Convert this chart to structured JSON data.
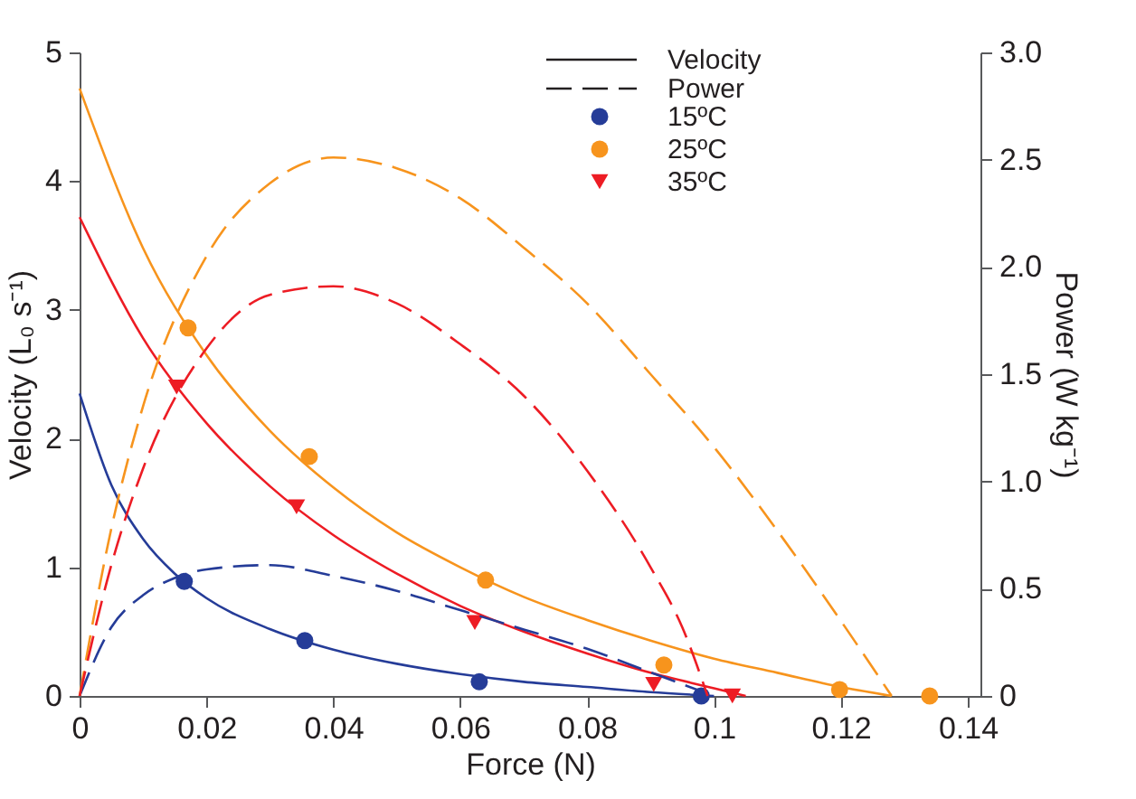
{
  "chart_data": {
    "type": "line",
    "xlabel": "Force (N)",
    "ylabel": "Velocity (L₀ s⁻¹)",
    "y2label": "Power (W kg⁻¹)",
    "xlim": [
      0,
      0.142
    ],
    "xticks": [
      0,
      0.02,
      0.04,
      0.06,
      0.08,
      0.1,
      0.12,
      0.14
    ],
    "ylim": [
      0,
      5
    ],
    "yticks": [
      0,
      1,
      2,
      3,
      4,
      5
    ],
    "y2lim": [
      0,
      3
    ],
    "y2ticks": [
      0,
      0.5,
      {
        "value": 1,
        "label": "1.0"
      },
      1.5,
      {
        "value": 2,
        "label": "2.0"
      },
      2.5,
      {
        "value": 3,
        "label": "3.0"
      }
    ],
    "grid": false,
    "legend": "top right",
    "annotations": [
      "Velocity",
      "Power"
    ],
    "series": [
      {
        "line_style": "solid",
        "color": "#253c98",
        "x": [
          0,
          0.005,
          0.01,
          0.015,
          0.02,
          0.03,
          0.04,
          0.05,
          0.06,
          0.07,
          0.08,
          0.09,
          0.1
        ],
        "values": [
          2.35,
          1.64,
          1.22,
          0.95,
          0.76,
          0.52,
          0.36,
          0.25,
          0.17,
          0.11,
          0.07,
          0.03,
          0
        ]
      },
      {
        "line_style": "solid",
        "color": "#f7941d",
        "x": [
          0,
          0.01,
          0.02,
          0.03,
          0.04,
          0.05,
          0.06,
          0.07,
          0.08,
          0.09,
          0.1,
          0.11,
          0.12,
          0.128
        ],
        "values": [
          4.72,
          3.48,
          2.65,
          2.06,
          1.62,
          1.27,
          1.0,
          0.77,
          0.59,
          0.43,
          0.29,
          0.18,
          0.07,
          0
        ]
      },
      {
        "line_style": "solid",
        "color": "#ed1c24",
        "x": [
          0,
          0.01,
          0.02,
          0.03,
          0.04,
          0.05,
          0.06,
          0.07,
          0.08,
          0.09,
          0.1,
          0.105
        ],
        "values": [
          3.72,
          2.78,
          2.12,
          1.63,
          1.25,
          0.95,
          0.7,
          0.5,
          0.33,
          0.18,
          0.06,
          0
        ]
      },
      {
        "line_style": "dashed",
        "axis": "y2",
        "color": "#253c98",
        "x": [
          0,
          0.005,
          0.01,
          0.015,
          0.02,
          0.03,
          0.04,
          0.05,
          0.06,
          0.07,
          0.08,
          0.09,
          0.1
        ],
        "values": [
          0,
          0.32,
          0.47,
          0.55,
          0.59,
          0.61,
          0.56,
          0.49,
          0.4,
          0.31,
          0.22,
          0.11,
          0
        ]
      },
      {
        "line_style": "dashed",
        "axis": "y2",
        "color": "#f7941d",
        "x": [
          0,
          0.005,
          0.01,
          0.02,
          0.03,
          0.04,
          0.05,
          0.06,
          0.07,
          0.08,
          0.09,
          0.1,
          0.11,
          0.12,
          0.128
        ],
        "values": [
          0,
          0.78,
          1.35,
          2.05,
          2.39,
          2.51,
          2.46,
          2.32,
          2.09,
          1.83,
          1.5,
          1.16,
          0.77,
          0.35,
          0
        ]
      },
      {
        "line_style": "dashed",
        "axis": "y2",
        "color": "#ed1c24",
        "x": [
          0,
          0.005,
          0.01,
          0.02,
          0.03,
          0.04,
          0.05,
          0.06,
          0.07,
          0.08,
          0.09,
          0.095,
          0.099
        ],
        "values": [
          0,
          0.61,
          1.06,
          1.62,
          1.87,
          1.91,
          1.83,
          1.64,
          1.4,
          1.05,
          0.6,
          0.32,
          0
        ]
      },
      {
        "name": "15ºC",
        "type": "scatter",
        "marker": "circle",
        "color": "#253c98",
        "x": [
          0.0165,
          0.0355,
          0.063,
          0.098
        ],
        "values": [
          0.89,
          0.43,
          0.11,
          0
        ]
      },
      {
        "name": "25ºC",
        "type": "scatter",
        "marker": "circle",
        "color": "#f7941d",
        "x": [
          0.0171,
          0.0362,
          0.064,
          0.0921,
          0.1198,
          0.134
        ],
        "values": [
          2.86,
          1.86,
          0.9,
          0.24,
          0.05,
          0
        ]
      },
      {
        "name": "35ºC",
        "type": "scatter",
        "marker": "triangle",
        "color": "#ed1c24",
        "x": [
          0.0153,
          0.0342,
          0.0623,
          0.0905,
          0.1029
        ],
        "values": [
          2.4,
          1.47,
          0.57,
          0.09,
          0
        ]
      }
    ]
  }
}
